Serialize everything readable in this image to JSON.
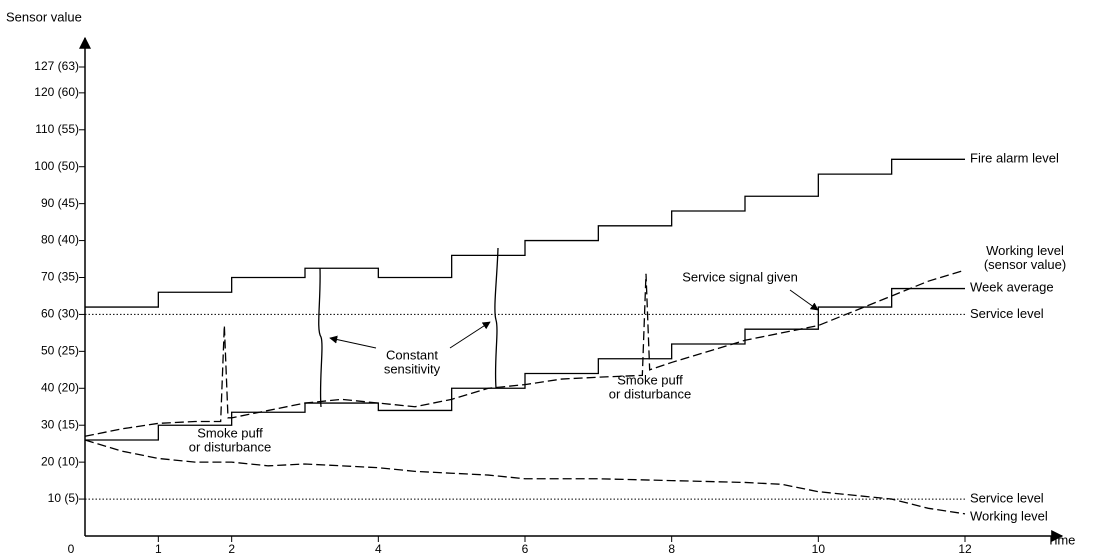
{
  "chart_data": {
    "type": "line",
    "y_label": "Sensor value",
    "x_label": "Time",
    "xlim": [
      0,
      12
    ],
    "ylim": [
      0,
      127
    ],
    "xticks": [
      0,
      1,
      2,
      4,
      6,
      8,
      10,
      12
    ],
    "yticks": [
      {
        "value": 127,
        "label": "127 (63)"
      },
      {
        "value": 120,
        "label": "120 (60)"
      },
      {
        "value": 110,
        "label": "110 (55)"
      },
      {
        "value": 100,
        "label": "100 (50)"
      },
      {
        "value": 90,
        "label": "90 (45)"
      },
      {
        "value": 80,
        "label": "80 (40)"
      },
      {
        "value": 70,
        "label": "70 (35)"
      },
      {
        "value": 60,
        "label": "60 (30)"
      },
      {
        "value": 50,
        "label": "50 (25)"
      },
      {
        "value": 40,
        "label": "40 (20)"
      },
      {
        "value": 30,
        "label": "30 (15)"
      },
      {
        "value": 20,
        "label": "20 (10)"
      },
      {
        "value": 10,
        "label": "10 (5)"
      }
    ],
    "series": [
      {
        "name": "Fire alarm level",
        "color": "#000000",
        "style": "step",
        "x": [
          0,
          1,
          2,
          3,
          4,
          5,
          6,
          7,
          8,
          9,
          10,
          11,
          12
        ],
        "values": [
          62,
          66,
          70,
          72.5,
          70,
          76,
          80,
          84,
          88,
          92,
          98,
          102,
          102
        ]
      },
      {
        "name": "Week average",
        "color": "#000000",
        "style": "step",
        "x": [
          0,
          1,
          2,
          3,
          4,
          5,
          6,
          7,
          8,
          9,
          10,
          11,
          12
        ],
        "values": [
          26,
          30,
          33.5,
          36,
          34,
          40,
          44,
          48,
          52,
          56,
          62,
          67,
          67
        ]
      },
      {
        "name": "Working level (sensor value)",
        "color": "#000000",
        "style": "dashed",
        "x": [
          0,
          0.5,
          1,
          1.5,
          1.85,
          1.9,
          1.95,
          2,
          2.5,
          3,
          3.5,
          4,
          4.5,
          5,
          5.5,
          6,
          6.5,
          7,
          7.6,
          7.65,
          7.7,
          8,
          8.5,
          9,
          9.5,
          10,
          10.5,
          11,
          11.5,
          12
        ],
        "values": [
          27,
          29,
          30.5,
          31,
          31,
          57,
          32,
          32,
          34,
          36,
          37,
          36,
          35,
          37,
          40,
          41,
          42.5,
          43,
          43.5,
          71,
          45,
          47,
          50,
          53,
          55,
          57,
          61,
          65,
          69,
          72
        ]
      },
      {
        "name": "Working level",
        "color": "#000000",
        "style": "dashed",
        "x": [
          0,
          0.5,
          1,
          1.5,
          2,
          2.5,
          3,
          3.5,
          4,
          4.5,
          5,
          5.5,
          6,
          7,
          8,
          9,
          9.5,
          10,
          10.5,
          11,
          11.5,
          12
        ],
        "values": [
          26,
          23,
          21,
          20,
          20,
          19,
          19.5,
          19,
          18.5,
          17.5,
          17,
          16.5,
          15.5,
          15.5,
          15,
          14.5,
          14,
          12,
          11,
          10,
          7.5,
          6
        ]
      }
    ],
    "hlines": [
      {
        "value": 60,
        "label": "Service level"
      },
      {
        "value": 10,
        "label": "Service level"
      }
    ],
    "annotations": [
      {
        "text": [
          "Service signal given"
        ]
      },
      {
        "text": [
          "Constant",
          "sensitivity"
        ]
      },
      {
        "text": [
          "Smoke puff",
          "or disturbance"
        ]
      },
      {
        "text": [
          "Smoke puff",
          "or disturbance"
        ]
      }
    ]
  }
}
